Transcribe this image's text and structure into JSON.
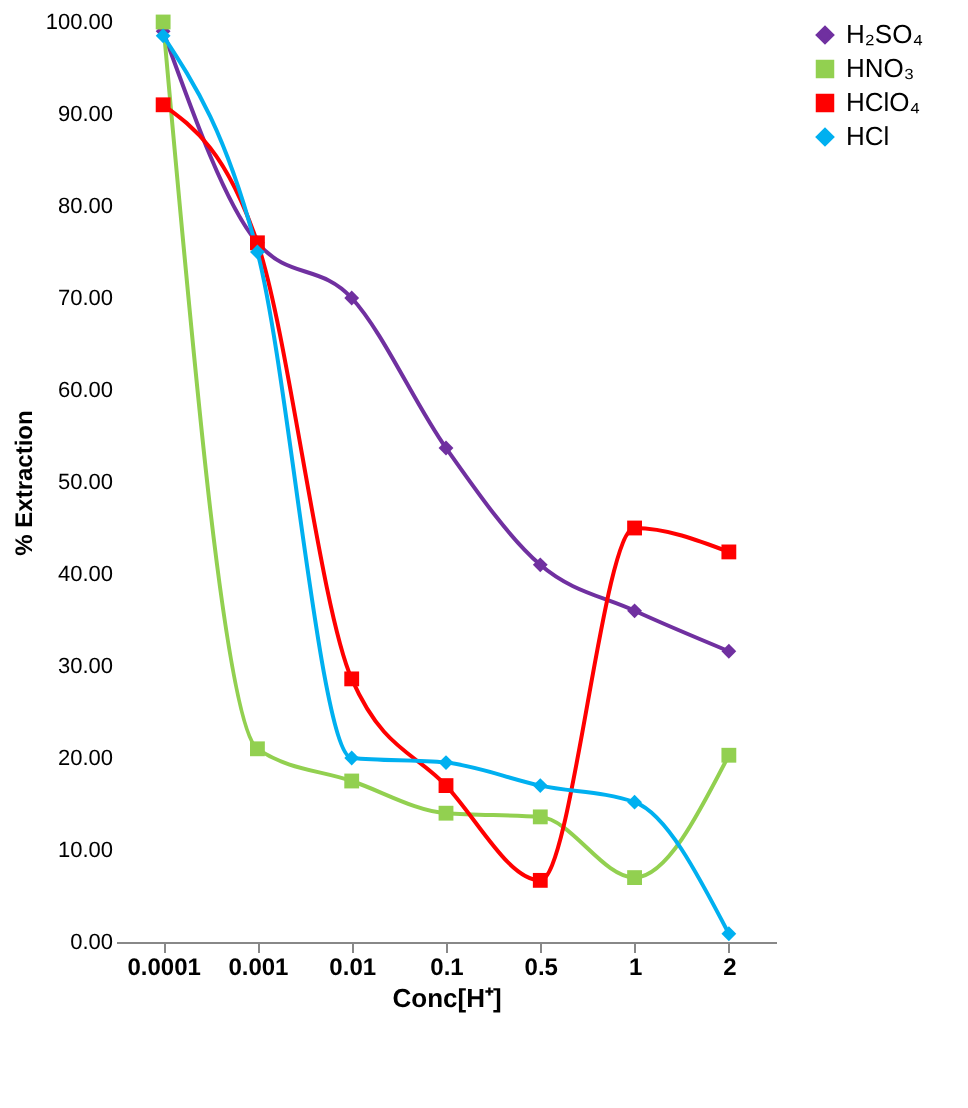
{
  "chart_data": {
    "type": "line",
    "xlabel": "Conc[H⁺]",
    "ylabel": "% Extraction",
    "categories": [
      "0.0001",
      "0.001",
      "0.01",
      "0.1",
      "0.5",
      "1",
      "2"
    ],
    "series": [
      {
        "name": "H₂SO₄",
        "color": "#7030a0",
        "marker": "diamond",
        "values": [
          99,
          76,
          70,
          53.7,
          41,
          36,
          31.6
        ]
      },
      {
        "name": "HNO₃",
        "color": "#92d050",
        "marker": "square",
        "values": [
          100,
          21,
          17.5,
          14,
          13.6,
          7,
          20.3
        ]
      },
      {
        "name": "HClO₄",
        "color": "#ff0000",
        "marker": "square",
        "values": [
          91,
          76,
          28.6,
          17,
          6.7,
          45,
          42.4
        ]
      },
      {
        "name": "HCl",
        "color": "#00b0f0",
        "marker": "diamond",
        "values": [
          98.5,
          75,
          20,
          19.5,
          17,
          15.2,
          0.9
        ]
      }
    ],
    "ylim": [
      0,
      100
    ],
    "yticks": [
      {
        "value": 0,
        "label": "0.00"
      },
      {
        "value": 10,
        "label": "10.00"
      },
      {
        "value": 20,
        "label": "20.00"
      },
      {
        "value": 30,
        "label": "30.00"
      },
      {
        "value": 40,
        "label": "40.00"
      },
      {
        "value": 50,
        "label": "50.00"
      },
      {
        "value": 60,
        "label": "60.00"
      },
      {
        "value": 70,
        "label": "70.00"
      },
      {
        "value": 80,
        "label": "80.00"
      },
      {
        "value": 90,
        "label": "90.00"
      },
      {
        "value": 100,
        "label": "100.00"
      }
    ],
    "grid": false,
    "legend": "right",
    "line_style": "solid"
  }
}
